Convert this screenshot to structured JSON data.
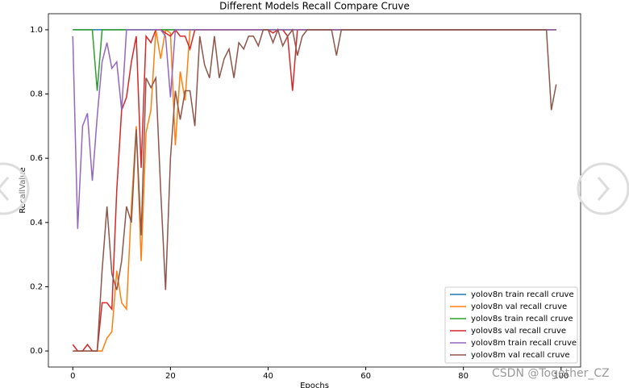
{
  "chart_data": {
    "type": "line",
    "title": "Different Models Recall Compare Cruve",
    "x_label": "Epochs",
    "y_label": "RecallValue",
    "watermark": "CSDN @Together_CZ",
    "xlim": [
      -5,
      104
    ],
    "ylim": [
      -0.05,
      1.05
    ],
    "xticks": [
      0,
      20,
      40,
      60,
      80,
      100
    ],
    "yticks": [
      {
        "value": 0,
        "label": "0.0"
      },
      0.2,
      0.4,
      0.6,
      0.8,
      {
        "value": 1,
        "label": "1.0"
      }
    ],
    "legend": "lower right",
    "x": [
      0,
      1,
      2,
      3,
      4,
      5,
      6,
      7,
      8,
      9,
      10,
      11,
      12,
      13,
      14,
      15,
      16,
      17,
      18,
      19,
      20,
      21,
      22,
      23,
      24,
      25,
      26,
      27,
      28,
      29,
      30,
      31,
      32,
      33,
      34,
      35,
      36,
      37,
      38,
      39,
      40,
      41,
      42,
      43,
      44,
      45,
      46,
      47,
      48,
      49,
      50,
      51,
      52,
      53,
      54,
      55,
      56,
      57,
      58,
      59,
      60,
      61,
      62,
      63,
      64,
      65,
      66,
      67,
      68,
      69,
      70,
      71,
      72,
      73,
      74,
      75,
      76,
      77,
      78,
      79,
      80,
      81,
      82,
      83,
      84,
      85,
      86,
      87,
      88,
      89,
      90,
      91,
      92,
      93,
      94,
      95,
      96,
      97,
      98,
      99
    ],
    "series": [
      {
        "name": "yolov8n train recall cruve",
        "color": "#1f77b4",
        "values": [
          1,
          1,
          1,
          1,
          1,
          1,
          1,
          1,
          1,
          1,
          1,
          1,
          1,
          1,
          1,
          1,
          1,
          1,
          1,
          1,
          1,
          1,
          1,
          1,
          1,
          1,
          1,
          1,
          1,
          1,
          1,
          1,
          1,
          1,
          1,
          1,
          1,
          1,
          1,
          1,
          1,
          1,
          1,
          1,
          1,
          1,
          1,
          1,
          1,
          1,
          1,
          1,
          1,
          1,
          1,
          1,
          1,
          1,
          1,
          1,
          1,
          1,
          1,
          1,
          1,
          1,
          1,
          1,
          1,
          1,
          1,
          1,
          1,
          1,
          1,
          1,
          1,
          1,
          1,
          1,
          1,
          1,
          1,
          1,
          1,
          1,
          1,
          1,
          1,
          1,
          1,
          1,
          1,
          1,
          1,
          1,
          1,
          1,
          1,
          1
        ]
      },
      {
        "name": "yolov8n val recall cruve",
        "color": "#ff7f0e",
        "values": [
          0,
          0,
          0,
          0,
          0,
          0,
          0,
          0.04,
          0.06,
          0.25,
          0.15,
          0.13,
          0.45,
          0.7,
          0.28,
          0.68,
          0.75,
          1,
          0.91,
          1,
          0.99,
          0.64,
          0.87,
          0.78,
          1,
          1,
          1,
          1,
          1,
          1,
          1,
          1,
          1,
          1,
          1,
          1,
          1,
          1,
          1,
          1,
          1,
          1,
          1,
          1,
          1,
          1,
          1,
          1,
          1,
          1,
          1,
          1,
          1,
          1,
          1,
          1,
          1,
          1,
          1,
          1,
          1,
          1,
          1,
          1,
          1,
          1,
          1,
          1,
          1,
          1,
          1,
          1,
          1,
          1,
          1,
          1,
          1,
          1,
          1,
          1,
          1,
          1,
          1,
          1,
          1,
          1,
          1,
          1,
          1,
          1,
          1,
          1,
          1,
          1,
          1,
          1,
          1,
          1,
          1,
          1
        ]
      },
      {
        "name": "yolov8s train recall cruve",
        "color": "#2ca02c",
        "values": [
          1,
          1,
          1,
          1,
          1,
          0.81,
          1,
          1,
          1,
          1,
          1,
          1,
          1,
          1,
          1,
          1,
          1,
          1,
          1,
          1,
          1,
          1,
          1,
          1,
          1,
          1,
          1,
          1,
          1,
          1,
          1,
          1,
          1,
          1,
          1,
          1,
          1,
          1,
          1,
          1,
          1,
          1,
          1,
          1,
          1,
          1,
          1,
          1,
          1,
          1,
          1,
          1,
          1,
          1,
          1,
          1,
          1,
          1,
          1,
          1,
          1,
          1,
          1,
          1,
          1,
          1,
          1,
          1,
          1,
          1,
          1,
          1,
          1,
          1,
          1,
          1,
          1,
          1,
          1,
          1,
          1,
          1,
          1,
          1,
          1,
          1,
          1,
          1,
          1,
          1,
          1,
          1,
          1,
          1,
          1,
          1,
          1,
          1,
          1,
          1
        ]
      },
      {
        "name": "yolov8s val recall cruve",
        "color": "#d62728",
        "values": [
          0.02,
          0,
          0,
          0.02,
          0,
          0,
          0.15,
          0.15,
          0.13,
          0.5,
          0.75,
          0.79,
          0.9,
          0.98,
          0.57,
          0.98,
          0.96,
          1,
          1,
          0.99,
          0.98,
          1,
          0.98,
          0.98,
          0.94,
          1,
          1,
          1,
          1,
          1,
          1,
          1,
          1,
          1,
          1,
          1,
          1,
          1,
          1,
          1,
          1,
          0.99,
          1,
          1,
          0.98,
          0.81,
          1,
          1,
          1,
          1,
          1,
          1,
          1,
          1,
          1,
          1,
          1,
          1,
          1,
          1,
          1,
          1,
          1,
          1,
          1,
          1,
          1,
          1,
          1,
          1,
          1,
          1,
          1,
          1,
          1,
          1,
          1,
          1,
          1,
          1,
          1,
          1,
          1,
          1,
          1,
          1,
          1,
          1,
          1,
          1,
          1,
          1,
          1,
          1,
          1,
          1,
          1,
          1,
          1,
          1
        ]
      },
      {
        "name": "yolov8m train recall cruve",
        "color": "#9467bd",
        "values": [
          0.98,
          0.38,
          0.7,
          0.74,
          0.53,
          0.73,
          0.9,
          0.96,
          0.88,
          0.9,
          0.75,
          1,
          1,
          1,
          1,
          1,
          1,
          1,
          1,
          0.98,
          0.79,
          1,
          1,
          1,
          1,
          1,
          1,
          1,
          1,
          1,
          1,
          1,
          1,
          1,
          1,
          1,
          1,
          1,
          1,
          1,
          1,
          1,
          1,
          1,
          1,
          1,
          1,
          1,
          1,
          1,
          1,
          1,
          1,
          1,
          1,
          1,
          1,
          1,
          1,
          1,
          1,
          1,
          1,
          1,
          1,
          1,
          1,
          1,
          1,
          1,
          1,
          1,
          1,
          1,
          1,
          1,
          1,
          1,
          1,
          1,
          1,
          1,
          1,
          1,
          1,
          1,
          1,
          1,
          1,
          1,
          1,
          1,
          1,
          1,
          1,
          1,
          1,
          1,
          1,
          1
        ]
      },
      {
        "name": "yolov8m val recall cruve",
        "color": "#8c564b",
        "values": [
          0,
          0,
          0,
          0,
          0,
          0,
          0.25,
          0.45,
          0.24,
          0.19,
          0.28,
          0.45,
          0.4,
          0.69,
          0.36,
          0.85,
          0.82,
          0.85,
          0.5,
          0.19,
          0.6,
          0.81,
          0.72,
          0.81,
          0.81,
          0.7,
          0.98,
          0.89,
          0.85,
          0.98,
          0.85,
          0.91,
          0.94,
          0.85,
          0.96,
          0.94,
          0.98,
          0.98,
          0.95,
          1,
          1,
          0.96,
          1,
          0.95,
          0.98,
          1,
          0.92,
          0.98,
          1,
          1,
          1,
          1,
          1,
          1,
          0.92,
          1,
          1,
          1,
          1,
          1,
          1,
          1,
          1,
          1,
          1,
          1,
          1,
          1,
          1,
          1,
          1,
          1,
          1,
          1,
          1,
          1,
          1,
          1,
          1,
          1,
          1,
          1,
          1,
          1,
          1,
          1,
          1,
          1,
          1,
          1,
          1,
          1,
          1,
          1,
          1,
          1,
          1,
          1,
          0.75,
          0.83
        ]
      }
    ]
  }
}
